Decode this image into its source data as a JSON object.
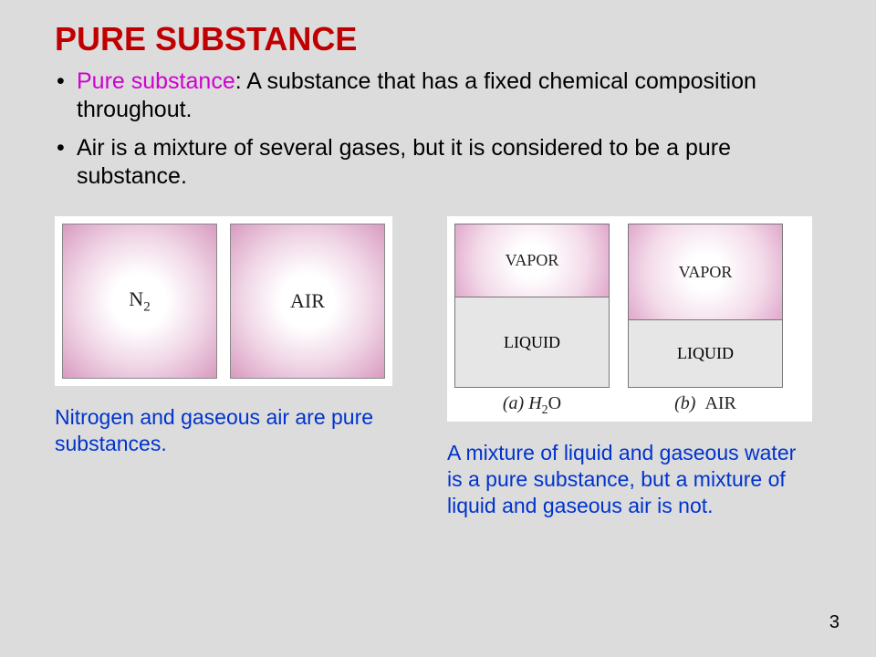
{
  "title": "PURE SUBSTANCE",
  "bullets": {
    "b1_term": "Pure substance",
    "b1_rest": ": A substance that has a fixed chemical composition throughout.",
    "b2": "Air is a mixture of several gases, but it is considered to be a pure substance."
  },
  "fig_left": {
    "box1_label": "N",
    "box1_sub": "2",
    "box2_label": "AIR",
    "caption": "Nitrogen and gaseous air are pure substances."
  },
  "fig_right": {
    "a_vapor": "VAPOR",
    "a_liquid": "LIQUID",
    "a_sub": "(a)  H",
    "a_sub2": "2",
    "a_sub3": "O",
    "b_vapor": "VAPOR",
    "b_liquid": "LIQUID",
    "b_sub": "(b)  AIR",
    "caption": "A mixture of liquid and gaseous water is a pure substance, but a mixture of liquid and gaseous air is not."
  },
  "page_number": "3",
  "colors": {
    "title": "#c00000",
    "term": "#d000d0",
    "caption": "#0033cc",
    "background": "#dcdcdc",
    "gradient_outer": "#d89bc0",
    "gradient_mid": "#f0d6e6",
    "liquid_fill": "#e6e6e6"
  }
}
